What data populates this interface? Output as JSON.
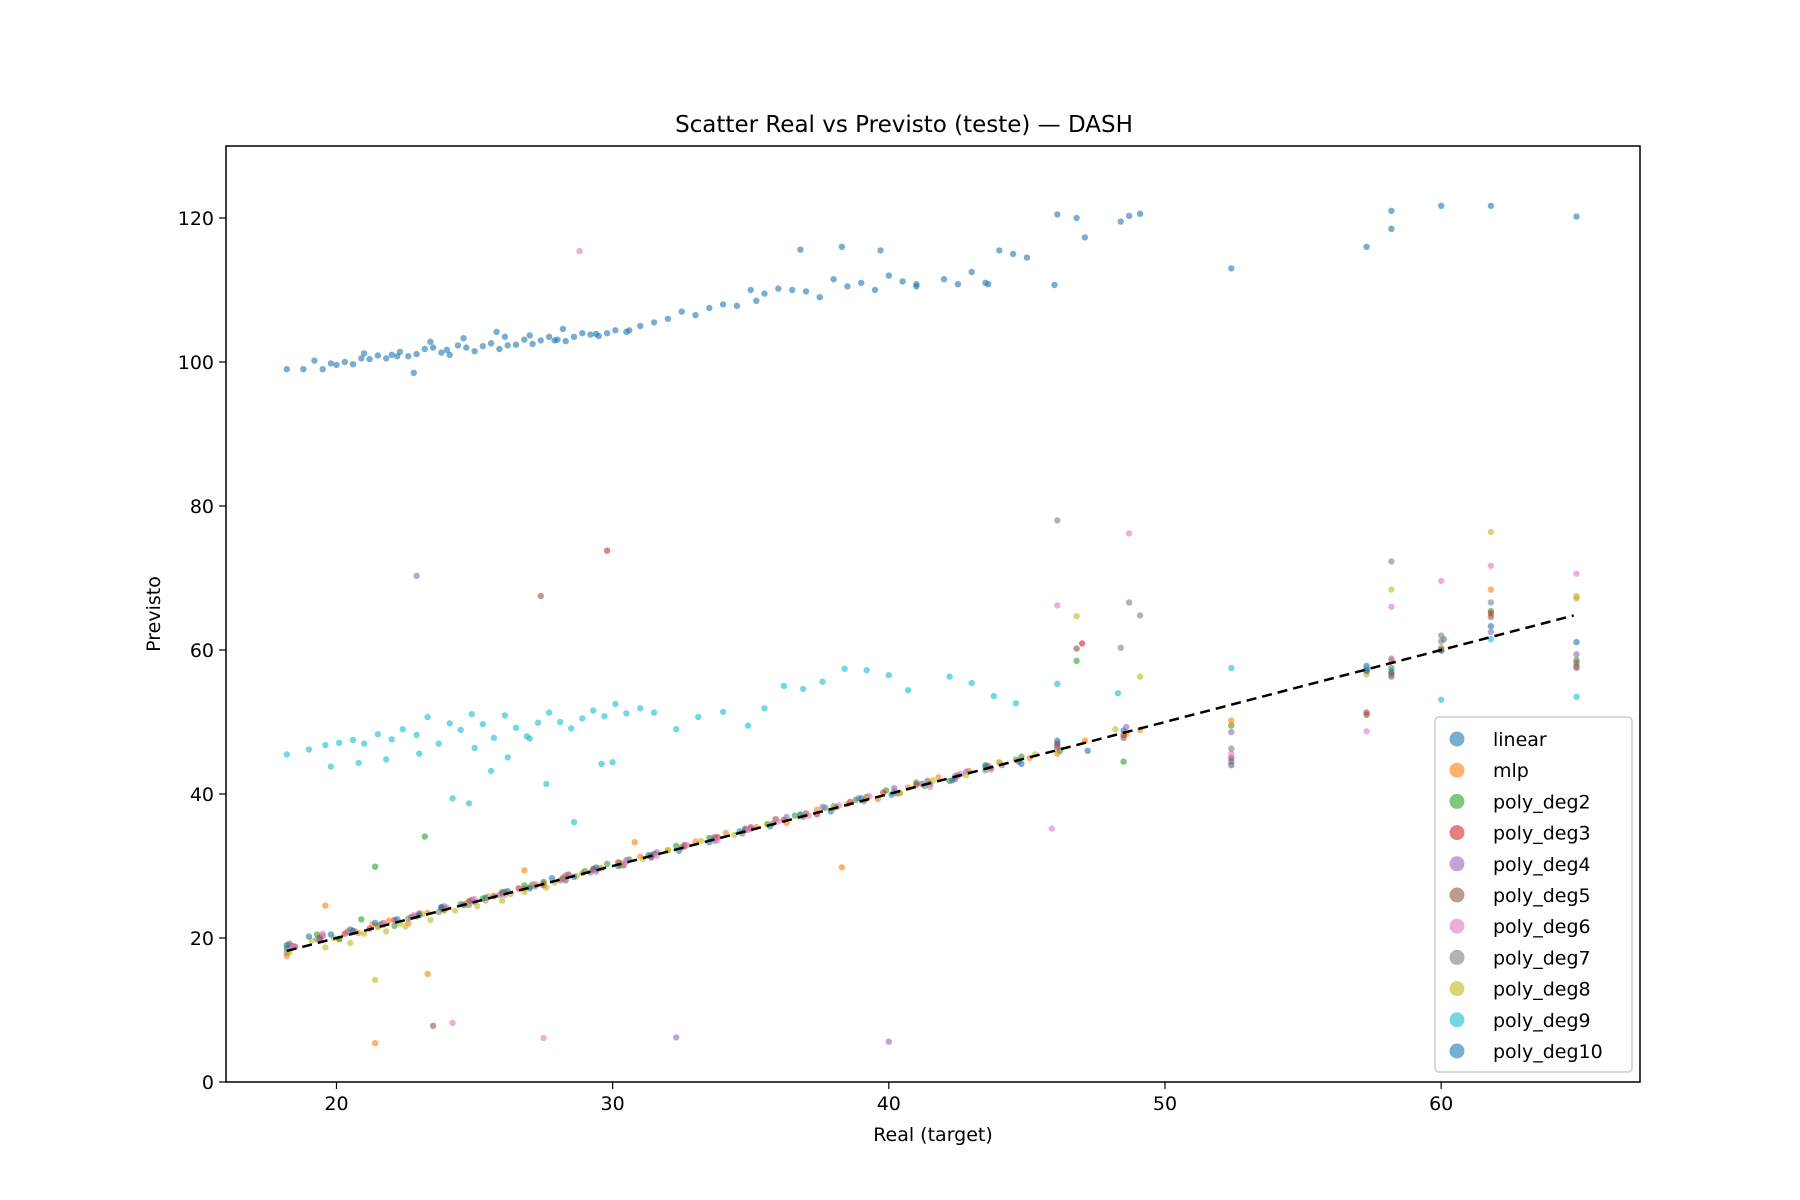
{
  "chart_data": {
    "type": "scatter",
    "title": "Scatter Real vs Previsto (teste) — DASH",
    "xlabel": "Real (target)",
    "ylabel": "Previsto",
    "xlim": [
      16,
      67.2
    ],
    "ylim": [
      0,
      130
    ],
    "x_ticks": [
      20,
      30,
      40,
      50,
      60
    ],
    "y_ticks": [
      0,
      20,
      40,
      60,
      80,
      100,
      120
    ],
    "grid": false,
    "legend_position": "lower-right",
    "reference_line": {
      "style": "dashed",
      "color": "#000000",
      "x": [
        18.2,
        64.8
      ],
      "y": [
        18.2,
        64.8
      ]
    },
    "series": [
      {
        "name": "linear",
        "color": "#1f77b4",
        "x": [
          18.2,
          18.8,
          19.2,
          19.5,
          19.8,
          20.0,
          20.3,
          20.6,
          20.9,
          21.2,
          21.5,
          21.8,
          22.0,
          22.3,
          22.6,
          22.9,
          23.2,
          23.5,
          23.8,
          24.1,
          24.4,
          24.7,
          25.0,
          25.3,
          25.6,
          25.9,
          26.2,
          26.5,
          26.8,
          27.1,
          27.4,
          27.7,
          28.0,
          28.3,
          28.6,
          28.9,
          29.2,
          29.5,
          29.8,
          30.1,
          30.5,
          31.0,
          31.5,
          32.0,
          32.5,
          33.0,
          33.5,
          34.0,
          34.5,
          35.0,
          35.5,
          36.0,
          36.5,
          37.0,
          37.5,
          38.0,
          38.5,
          39.0,
          39.5,
          40.0,
          40.5,
          41.0,
          42.0,
          42.5,
          43.0,
          43.5,
          44.0,
          44.5,
          45.0,
          46.0,
          46.1,
          46.8,
          47.1,
          48.4,
          48.7,
          49.1,
          52.4,
          57.3,
          58.2,
          58.2,
          60.0,
          61.8,
          64.9,
          21.0,
          22.2,
          23.4,
          24.6,
          25.8,
          27.0,
          28.2,
          29.4,
          30.6,
          35.2,
          36.8,
          38.3,
          39.7,
          41.0,
          43.6,
          22.8,
          24.0,
          26.1,
          27.9
        ],
        "y": [
          99.0,
          99.0,
          100.2,
          99.0,
          99.8,
          99.6,
          100.0,
          99.7,
          100.5,
          100.4,
          100.9,
          100.5,
          101.0,
          101.4,
          100.8,
          101.1,
          101.8,
          102.0,
          101.3,
          101.0,
          102.3,
          102.0,
          101.5,
          102.2,
          102.6,
          101.8,
          102.3,
          102.4,
          103.1,
          102.5,
          103.0,
          103.5,
          103.1,
          102.9,
          103.5,
          104.0,
          103.8,
          103.6,
          104.0,
          104.4,
          104.2,
          105.0,
          105.5,
          106.0,
          107.0,
          106.5,
          107.5,
          108.0,
          107.8,
          110.0,
          109.5,
          110.2,
          110.0,
          109.8,
          109.0,
          111.5,
          110.5,
          111.0,
          110.0,
          112.0,
          111.2,
          110.5,
          111.5,
          110.8,
          112.5,
          111.0,
          115.5,
          115.0,
          114.5,
          110.7,
          120.5,
          120.0,
          117.3,
          119.5,
          120.3,
          120.6,
          113.0,
          116.0,
          121.0,
          118.5,
          121.7,
          121.7,
          120.2,
          101.2,
          100.8,
          102.8,
          103.3,
          104.2,
          103.7,
          104.6,
          103.9,
          104.4,
          108.5,
          115.6,
          116.0,
          115.5,
          110.8,
          110.8,
          98.5,
          101.7,
          103.5,
          103.0
        ]
      },
      {
        "name": "mlp",
        "color": "#ff7f0e",
        "x": [
          18.2,
          19.6,
          20.1,
          20.8,
          21.3,
          21.4,
          21.9,
          22.6,
          23.3,
          24.0,
          24.7,
          25.4,
          26.1,
          26.8,
          27.5,
          28.2,
          28.9,
          29.6,
          30.3,
          31.0,
          32.0,
          33.0,
          34.1,
          35.2,
          36.3,
          37.4,
          38.5,
          39.6,
          40.7,
          41.8,
          42.9,
          44.0,
          45.1,
          46.1,
          47.1,
          48.6,
          49.1,
          52.4,
          57.3,
          58.2,
          60.0,
          61.8,
          64.9,
          23.3,
          26.8,
          30.8,
          38.3
        ],
        "y": [
          17.5,
          24.5,
          19.8,
          20.7,
          21.9,
          5.4,
          22.4,
          22.0,
          15.0,
          24.2,
          24.8,
          25.2,
          26.3,
          26.9,
          27.6,
          28.4,
          29.0,
          29.7,
          30.1,
          31.3,
          32.2,
          33.4,
          34.6,
          35.4,
          36.0,
          37.8,
          38.6,
          39.3,
          40.9,
          42.3,
          43.2,
          44.4,
          45.0,
          45.6,
          47.4,
          48.3,
          48.9,
          50.2,
          57.4,
          58.5,
          60.3,
          68.4,
          67.2,
          23.5,
          29.4,
          33.3,
          29.8
        ]
      },
      {
        "name": "poly_deg2",
        "color": "#2ca02c",
        "x": [
          18.2,
          19.3,
          20.1,
          20.9,
          21.4,
          22.1,
          22.9,
          23.2,
          23.8,
          24.5,
          25.3,
          26.0,
          26.8,
          27.5,
          28.3,
          29.0,
          29.8,
          30.6,
          31.4,
          32.3,
          33.5,
          34.8,
          35.6,
          36.6,
          37.7,
          38.8,
          39.9,
          41.0,
          42.2,
          43.5,
          44.8,
          46.2,
          46.8,
          48.5,
          52.4,
          57.3,
          58.2,
          60.1,
          61.8,
          64.9
        ],
        "y": [
          18.6,
          20.5,
          19.9,
          22.6,
          29.9,
          21.7,
          23.0,
          34.1,
          24.2,
          24.7,
          25.5,
          26.4,
          27.3,
          27.8,
          28.0,
          29.3,
          30.3,
          30.9,
          31.5,
          32.8,
          33.9,
          35.0,
          35.8,
          37.0,
          38.1,
          39.2,
          40.5,
          41.6,
          41.8,
          44.0,
          45.2,
          46.0,
          58.5,
          44.5,
          49.5,
          57.1,
          57.5,
          61.5,
          65.4,
          58.6
        ]
      },
      {
        "name": "poly_deg3",
        "color": "#d62728",
        "x": [
          18.5,
          19.4,
          20.3,
          21.2,
          22.1,
          23.0,
          23.9,
          24.8,
          25.7,
          26.6,
          27.5,
          28.4,
          29.3,
          29.8,
          30.2,
          31.4,
          32.6,
          33.8,
          35.0,
          36.2,
          37.4,
          38.6,
          39.8,
          41.0,
          42.4,
          43.7,
          46.1,
          47.0,
          48.5,
          52.4,
          57.3,
          58.2,
          61.8,
          64.9
        ],
        "y": [
          18.8,
          19.9,
          20.6,
          21.3,
          22.5,
          23.4,
          24.0,
          25.1,
          25.8,
          26.9,
          27.3,
          28.8,
          29.5,
          73.8,
          30.5,
          31.2,
          32.9,
          34.0,
          35.2,
          36.4,
          37.2,
          38.9,
          40.2,
          41.3,
          42.1,
          43.6,
          46.5,
          60.9,
          48.2,
          45.0,
          51.3,
          56.7,
          65.1,
          57.7
        ]
      },
      {
        "name": "poly_deg4",
        "color": "#9467bd",
        "x": [
          18.4,
          19.5,
          20.6,
          21.7,
          22.8,
          22.9,
          23.9,
          25.0,
          26.1,
          27.2,
          28.3,
          29.4,
          30.5,
          31.6,
          32.3,
          33.7,
          35.0,
          36.3,
          37.6,
          38.9,
          40.0,
          40.2,
          41.5,
          42.8,
          44.1,
          46.1,
          48.6,
          52.4,
          57.3,
          58.2,
          60.0,
          61.8,
          64.9
        ],
        "y": [
          18.9,
          20.3,
          21.0,
          22.1,
          23.0,
          70.3,
          24.4,
          25.0,
          26.4,
          27.2,
          28.7,
          29.4,
          30.8,
          31.9,
          6.2,
          33.5,
          35.4,
          36.8,
          38.2,
          39.4,
          5.6,
          40.8,
          41.4,
          43.1,
          44.0,
          46.8,
          49.3,
          48.6,
          57.8,
          58.8,
          61.2,
          62.5,
          59.4
        ]
      },
      {
        "name": "poly_deg5",
        "color": "#8c564b",
        "x": [
          18.3,
          19.4,
          20.5,
          21.6,
          22.7,
          23.5,
          23.8,
          24.9,
          26.0,
          27.1,
          27.4,
          28.2,
          29.3,
          30.4,
          31.5,
          32.6,
          33.7,
          34.8,
          35.9,
          37.0,
          38.1,
          39.2,
          40.3,
          41.4,
          42.5,
          43.6,
          44.7,
          46.1,
          46.8,
          48.5,
          52.4,
          57.3,
          58.2,
          60.0,
          61.8,
          64.9
        ],
        "y": [
          19.2,
          20.1,
          21.2,
          21.9,
          22.9,
          7.8,
          24.1,
          25.3,
          26.2,
          27.4,
          67.5,
          28.2,
          29.6,
          30.1,
          31.7,
          32.7,
          34.0,
          35.2,
          36.5,
          37.3,
          38.2,
          39.6,
          40.1,
          41.8,
          42.6,
          43.9,
          44.5,
          47.0,
          60.2,
          47.8,
          44.0,
          51.0,
          56.3,
          59.9,
          64.6,
          58.2
        ]
      },
      {
        "name": "poly_deg6",
        "color": "#e377c2",
        "x": [
          18.4,
          19.5,
          20.6,
          21.7,
          22.8,
          23.9,
          24.2,
          25.0,
          26.1,
          27.2,
          27.5,
          28.3,
          28.8,
          29.4,
          30.5,
          31.6,
          32.7,
          33.8,
          34.9,
          36.0,
          37.1,
          38.2,
          39.3,
          40.4,
          41.5,
          42.6,
          43.7,
          45.9,
          46.1,
          48.7,
          52.4,
          57.3,
          58.2,
          60.0,
          61.8,
          64.9
        ],
        "y": [
          18.8,
          20.6,
          20.8,
          21.8,
          23.2,
          23.9,
          8.2,
          25.4,
          26.0,
          27.5,
          6.1,
          28.1,
          115.4,
          29.2,
          30.6,
          31.4,
          32.9,
          33.6,
          35.0,
          36.2,
          37.0,
          38.4,
          39.7,
          40.2,
          41.0,
          42.8,
          43.4,
          35.2,
          66.2,
          76.2,
          45.6,
          48.7,
          66.0,
          69.6,
          71.7,
          70.6
        ]
      },
      {
        "name": "poly_deg7",
        "color": "#7f7f7f",
        "x": [
          18.2,
          19.3,
          20.4,
          21.5,
          22.6,
          23.7,
          24.8,
          25.9,
          27.0,
          28.1,
          29.2,
          30.3,
          31.4,
          32.5,
          33.6,
          34.7,
          35.8,
          36.9,
          38.0,
          39.1,
          40.2,
          41.3,
          42.4,
          43.5,
          44.6,
          46.1,
          48.4,
          48.7,
          49.1,
          52.4,
          57.3,
          58.2,
          60.0,
          61.8,
          64.9
        ],
        "y": [
          18.0,
          19.8,
          20.9,
          21.7,
          22.7,
          23.6,
          24.6,
          26.0,
          27.1,
          28.0,
          29.1,
          30.4,
          31.3,
          32.6,
          33.8,
          34.5,
          35.9,
          36.8,
          38.3,
          39.0,
          40.4,
          41.1,
          42.5,
          43.3,
          44.8,
          78.0,
          60.3,
          66.6,
          64.8,
          46.3,
          57.0,
          72.3,
          62.0,
          66.6,
          57.5
        ]
      },
      {
        "name": "poly_deg8",
        "color": "#bcbd22",
        "x": [
          18.3,
          19.1,
          19.9,
          20.7,
          21.4,
          21.5,
          22.3,
          23.1,
          23.9,
          24.7,
          25.5,
          26.3,
          27.1,
          27.9,
          28.7,
          29.5,
          30.3,
          31.1,
          32.0,
          33.2,
          34.4,
          35.6,
          36.8,
          38.0,
          39.2,
          40.4,
          41.6,
          42.8,
          44.0,
          45.3,
          46.8,
          48.2,
          49.1,
          52.4,
          57.3,
          58.2,
          60.0,
          61.8,
          64.9,
          19.6,
          20.5,
          21.0,
          21.8,
          22.5,
          23.4,
          24.3,
          25.1,
          26.0,
          26.8,
          27.6
        ],
        "y": [
          18.0,
          19.6,
          20.0,
          20.9,
          14.2,
          21.5,
          22.0,
          23.3,
          23.8,
          24.6,
          25.8,
          26.1,
          27.3,
          27.7,
          28.6,
          29.7,
          30.2,
          31.0,
          32.2,
          33.5,
          34.3,
          35.8,
          37.2,
          38.0,
          39.4,
          40.1,
          41.9,
          42.6,
          44.3,
          45.5,
          64.7,
          49.0,
          56.3,
          49.6,
          56.6,
          68.4,
          60.2,
          76.4,
          67.5,
          18.7,
          19.3,
          20.6,
          20.9,
          21.6,
          22.5,
          23.8,
          24.4,
          25.2,
          26.4,
          27.0
        ]
      },
      {
        "name": "poly_deg9",
        "color": "#17becf",
        "x": [
          18.2,
          19.0,
          19.6,
          20.1,
          20.6,
          21.0,
          21.5,
          22.0,
          22.4,
          22.9,
          23.3,
          23.7,
          24.1,
          24.5,
          24.9,
          25.3,
          25.7,
          26.1,
          26.5,
          26.9,
          27.3,
          27.7,
          28.1,
          28.5,
          28.9,
          29.3,
          29.7,
          30.1,
          30.5,
          31.0,
          31.5,
          32.3,
          33.1,
          34.0,
          34.9,
          35.5,
          36.2,
          36.9,
          37.6,
          38.4,
          39.2,
          40.0,
          40.7,
          42.2,
          43.0,
          43.8,
          44.6,
          46.1,
          48.3,
          52.4,
          57.3,
          60.0,
          61.8,
          64.9,
          24.2,
          24.8,
          25.6,
          26.2,
          27.6,
          29.6,
          30.0,
          21.8,
          23.0,
          25.0,
          27.0,
          28.6,
          19.8,
          20.8
        ],
        "y": [
          45.5,
          46.2,
          46.8,
          47.1,
          47.5,
          47.0,
          48.3,
          47.6,
          49.0,
          48.2,
          50.7,
          47.0,
          49.8,
          48.9,
          51.1,
          49.7,
          47.8,
          50.9,
          49.2,
          48.0,
          49.9,
          51.3,
          50.0,
          49.1,
          50.5,
          51.6,
          50.8,
          52.5,
          51.2,
          51.9,
          51.3,
          49.0,
          50.7,
          51.4,
          49.5,
          51.9,
          55.0,
          54.6,
          55.6,
          57.4,
          57.2,
          56.5,
          54.4,
          56.3,
          55.4,
          53.6,
          52.6,
          55.3,
          54.0,
          57.5,
          57.7,
          53.1,
          61.5,
          53.5,
          39.4,
          38.7,
          43.2,
          45.1,
          41.4,
          44.2,
          44.4,
          44.8,
          45.6,
          46.4,
          47.7,
          36.1,
          43.8,
          44.3
        ]
      },
      {
        "name": "poly_deg10",
        "color": "#1f77b4",
        "x": [
          18.2,
          19.0,
          19.8,
          20.6,
          21.4,
          22.2,
          23.0,
          23.8,
          24.6,
          25.4,
          26.2,
          27.0,
          27.8,
          28.6,
          29.4,
          30.2,
          31.3,
          32.4,
          33.5,
          34.6,
          35.7,
          36.8,
          37.9,
          39.0,
          40.1,
          41.2,
          42.3,
          43.5,
          44.8,
          46.1,
          47.2,
          48.5,
          52.4,
          57.3,
          58.2,
          60.0,
          61.8,
          64.9
        ],
        "y": [
          19.0,
          20.2,
          20.5,
          21.0,
          22.1,
          22.6,
          23.2,
          24.3,
          24.6,
          25.6,
          26.5,
          26.9,
          28.3,
          28.5,
          29.8,
          30.0,
          31.5,
          32.1,
          33.3,
          34.8,
          35.5,
          37.1,
          37.6,
          39.4,
          39.9,
          41.4,
          41.9,
          43.8,
          44.2,
          47.4,
          46.0,
          48.8,
          44.5,
          57.2,
          57.0,
          60.0,
          63.3,
          61.1
        ]
      }
    ]
  }
}
